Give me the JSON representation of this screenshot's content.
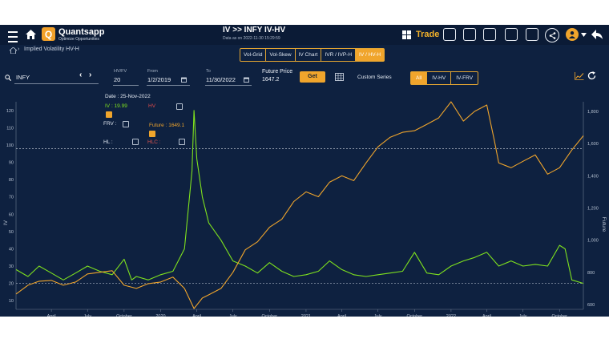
{
  "header": {
    "brand": "Quantsapp",
    "tagline": "Optimize Opportunities",
    "title": "IV >> INFY IV-HV",
    "data_as_on": "Data as on 2022-11-30 15:29:59",
    "trade_label": "Trade"
  },
  "breadcrumb": "Implied Volatility HV-H",
  "tabs": [
    {
      "label": "Vol-Grid"
    },
    {
      "label": "Vol-Skew"
    },
    {
      "label": "IV Chart"
    },
    {
      "label": "IVR / IVP-H"
    },
    {
      "label": "IV / HV-H",
      "active": true
    }
  ],
  "controls": {
    "symbol": "INFY",
    "hv_fv_label": "HV/FV",
    "hv_fv_value": "20",
    "from_label": "From",
    "from_value": "1/2/2019",
    "to_label": "To",
    "to_value": "11/30/2022",
    "future_price_label": "Future Price",
    "future_price_value": "1647.2",
    "get_label": "Get",
    "custom_series_label": "Custom Series",
    "series_toggle": [
      "All",
      "IV-HV",
      "IV-FRV"
    ],
    "selected_toggle": "All"
  },
  "legend": {
    "date": "Date : 25-Nov-2022",
    "iv": "IV : 19.99",
    "hv": "HV",
    "frv": "FRV :",
    "future": "Future : 1649.1",
    "hl": "HL :",
    "hlc": "HLC :"
  },
  "colors": {
    "iv": "#7fe21e",
    "future": "#f0a52c",
    "accent": "#f0a52c",
    "bg": "#0e2140",
    "hv": "#e04a4a",
    "hlc": "#d9534f"
  },
  "chart_data": {
    "type": "line",
    "ylabel": "IV",
    "y2label": "Future",
    "ylim": [
      5,
      125
    ],
    "y2lim": [
      570,
      1860
    ],
    "yticks": [
      10,
      20,
      30,
      40,
      50,
      60,
      70,
      80,
      90,
      100,
      110,
      120
    ],
    "y2ticks": [
      600,
      800,
      1000,
      1200,
      1400,
      1600,
      1800
    ],
    "y2tick_labels": [
      "600",
      "800",
      "1,000",
      "1,200",
      "1,400",
      "1,600",
      "1,800"
    ],
    "xlim": [
      "2019-01-02",
      "2022-11-30"
    ],
    "xticks": [
      {
        "label": "April",
        "date": "2019-04-01"
      },
      {
        "label": "July",
        "date": "2019-07-01"
      },
      {
        "label": "October",
        "date": "2019-10-01"
      },
      {
        "label": "2020",
        "date": "2020-01-01"
      },
      {
        "label": "April",
        "date": "2020-04-01"
      },
      {
        "label": "July",
        "date": "2020-07-01"
      },
      {
        "label": "October",
        "date": "2020-10-01"
      },
      {
        "label": "2021",
        "date": "2021-01-01"
      },
      {
        "label": "April",
        "date": "2021-04-01"
      },
      {
        "label": "July",
        "date": "2021-07-01"
      },
      {
        "label": "October",
        "date": "2021-10-01"
      },
      {
        "label": "2022",
        "date": "2022-01-01"
      },
      {
        "label": "April",
        "date": "2022-04-01"
      },
      {
        "label": "July",
        "date": "2022-07-01"
      },
      {
        "label": "October",
        "date": "2022-10-01"
      }
    ],
    "reference_lines": [
      {
        "axis": "y",
        "value": 98
      },
      {
        "axis": "y",
        "value": 20
      }
    ],
    "grid": false,
    "series": [
      {
        "name": "IV",
        "axis": "left",
        "points": [
          [
            "2019-01-02",
            28
          ],
          [
            "2019-02-01",
            24
          ],
          [
            "2019-03-01",
            30
          ],
          [
            "2019-04-01",
            26
          ],
          [
            "2019-05-01",
            22
          ],
          [
            "2019-06-01",
            26
          ],
          [
            "2019-07-01",
            30
          ],
          [
            "2019-08-01",
            27
          ],
          [
            "2019-09-01",
            25
          ],
          [
            "2019-10-01",
            34
          ],
          [
            "2019-10-20",
            22
          ],
          [
            "2019-11-01",
            24
          ],
          [
            "2019-12-01",
            22
          ],
          [
            "2020-01-01",
            25
          ],
          [
            "2020-02-01",
            27
          ],
          [
            "2020-03-01",
            40
          ],
          [
            "2020-03-20",
            85
          ],
          [
            "2020-03-25",
            120
          ],
          [
            "2020-04-01",
            92
          ],
          [
            "2020-04-15",
            70
          ],
          [
            "2020-05-01",
            55
          ],
          [
            "2020-06-01",
            45
          ],
          [
            "2020-07-01",
            33
          ],
          [
            "2020-08-01",
            30
          ],
          [
            "2020-09-01",
            26
          ],
          [
            "2020-10-01",
            32
          ],
          [
            "2020-11-01",
            27
          ],
          [
            "2020-12-01",
            24
          ],
          [
            "2021-01-01",
            25
          ],
          [
            "2021-02-01",
            27
          ],
          [
            "2021-03-01",
            33
          ],
          [
            "2021-04-01",
            28
          ],
          [
            "2021-05-01",
            25
          ],
          [
            "2021-06-01",
            24
          ],
          [
            "2021-07-01",
            25
          ],
          [
            "2021-08-01",
            26
          ],
          [
            "2021-09-01",
            27
          ],
          [
            "2021-10-01",
            38
          ],
          [
            "2021-11-01",
            26
          ],
          [
            "2021-12-01",
            25
          ],
          [
            "2022-01-01",
            30
          ],
          [
            "2022-02-01",
            33
          ],
          [
            "2022-03-01",
            35
          ],
          [
            "2022-04-01",
            38
          ],
          [
            "2022-05-01",
            30
          ],
          [
            "2022-06-01",
            33
          ],
          [
            "2022-07-01",
            30
          ],
          [
            "2022-08-01",
            31
          ],
          [
            "2022-09-01",
            30
          ],
          [
            "2022-10-01",
            42
          ],
          [
            "2022-10-15",
            40
          ],
          [
            "2022-11-01",
            22
          ],
          [
            "2022-11-30",
            20
          ]
        ]
      },
      {
        "name": "Future",
        "axis": "right",
        "points": [
          [
            "2019-01-02",
            665
          ],
          [
            "2019-02-01",
            720
          ],
          [
            "2019-03-01",
            745
          ],
          [
            "2019-04-01",
            750
          ],
          [
            "2019-05-01",
            720
          ],
          [
            "2019-06-01",
            740
          ],
          [
            "2019-07-01",
            790
          ],
          [
            "2019-08-01",
            800
          ],
          [
            "2019-09-01",
            810
          ],
          [
            "2019-10-01",
            720
          ],
          [
            "2019-11-01",
            700
          ],
          [
            "2019-12-01",
            730
          ],
          [
            "2020-01-01",
            740
          ],
          [
            "2020-02-01",
            770
          ],
          [
            "2020-03-01",
            700
          ],
          [
            "2020-03-25",
            575
          ],
          [
            "2020-04-15",
            640
          ],
          [
            "2020-05-01",
            660
          ],
          [
            "2020-06-01",
            700
          ],
          [
            "2020-07-01",
            800
          ],
          [
            "2020-08-01",
            940
          ],
          [
            "2020-09-01",
            990
          ],
          [
            "2020-10-01",
            1080
          ],
          [
            "2020-11-01",
            1130
          ],
          [
            "2020-12-01",
            1240
          ],
          [
            "2021-01-01",
            1300
          ],
          [
            "2021-02-01",
            1270
          ],
          [
            "2021-03-01",
            1360
          ],
          [
            "2021-04-01",
            1400
          ],
          [
            "2021-05-01",
            1370
          ],
          [
            "2021-06-01",
            1480
          ],
          [
            "2021-07-01",
            1580
          ],
          [
            "2021-08-01",
            1640
          ],
          [
            "2021-09-01",
            1670
          ],
          [
            "2021-10-01",
            1680
          ],
          [
            "2021-11-01",
            1720
          ],
          [
            "2021-12-01",
            1760
          ],
          [
            "2022-01-01",
            1860
          ],
          [
            "2022-02-01",
            1740
          ],
          [
            "2022-03-01",
            1800
          ],
          [
            "2022-04-01",
            1840
          ],
          [
            "2022-04-20",
            1620
          ],
          [
            "2022-05-01",
            1480
          ],
          [
            "2022-06-01",
            1450
          ],
          [
            "2022-07-01",
            1490
          ],
          [
            "2022-08-01",
            1530
          ],
          [
            "2022-09-01",
            1410
          ],
          [
            "2022-10-01",
            1450
          ],
          [
            "2022-11-01",
            1560
          ],
          [
            "2022-11-30",
            1649
          ]
        ]
      }
    ]
  }
}
